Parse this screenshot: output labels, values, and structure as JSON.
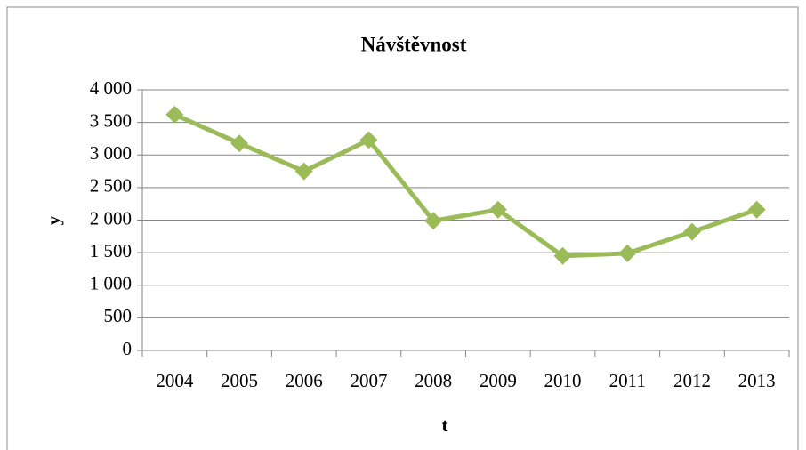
{
  "chart_data": {
    "type": "line",
    "title": "Návštěvnost",
    "x_label": "t",
    "y_label": "y",
    "categories": [
      "2004",
      "2005",
      "2006",
      "2007",
      "2008",
      "2009",
      "2010",
      "2011",
      "2012",
      "2013"
    ],
    "series": [
      {
        "name": "y",
        "color": "#9bbb59",
        "values": [
          3620,
          3180,
          2750,
          3230,
          1990,
          2160,
          1450,
          1490,
          1820,
          2160
        ]
      }
    ],
    "ylim": [
      0,
      4000
    ],
    "yticks": [
      0,
      500,
      {
        "value": 1000,
        "label": "1 000"
      },
      {
        "value": 1500,
        "label": "1 500"
      },
      {
        "value": 2000,
        "label": "2 000"
      },
      {
        "value": 2500,
        "label": "2 500"
      },
      {
        "value": 3000,
        "label": "3 000"
      },
      {
        "value": 3500,
        "label": "3 500"
      },
      {
        "value": 4000,
        "label": "4 000"
      }
    ],
    "grid": true
  }
}
